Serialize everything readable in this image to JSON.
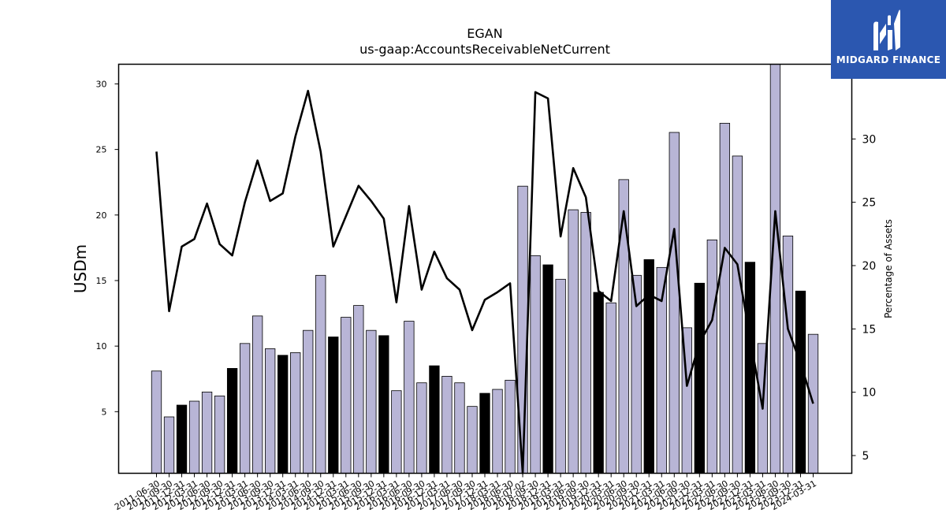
{
  "chart_data": {
    "type": "bar",
    "title": "EGAN",
    "subtitle": "us-gaap:AccountsReceivableNetCurrent",
    "ylabel": "USDm",
    "y2label": "Percentage of Assets",
    "ylim": [
      0.3,
      31.5
    ],
    "y2lim": [
      3.6,
      35.9
    ],
    "yticks": [
      5,
      10,
      15,
      20,
      25,
      30
    ],
    "y2ticks": [
      5,
      10,
      15,
      20,
      25,
      30
    ],
    "colors": {
      "bar_normal": "#b8b5d6",
      "bar_highlight": "#000000",
      "line": "#000000"
    },
    "categories": [
      "2011-06-30",
      "2011-09-30",
      "2011-12-31",
      "2012-03-31",
      "2012-06-30",
      "2012-09-30",
      "2012-12-31",
      "2013-03-31",
      "2013-06-30",
      "2013-09-30",
      "2013-12-31",
      "2014-03-31",
      "2014-06-30",
      "2014-09-30",
      "2014-12-31",
      "2015-03-31",
      "2015-06-30",
      "2015-09-30",
      "2015-12-31",
      "2016-03-31",
      "2016-06-30",
      "2016-09-30",
      "2016-12-31",
      "2017-03-31",
      "2017-06-30",
      "2017-09-30",
      "2017-12-31",
      "2018-03-31",
      "2018-06-30",
      "2018-07-02",
      "2018-09-30",
      "2018-12-31",
      "2019-03-31",
      "2019-06-30",
      "2019-09-30",
      "2019-12-31",
      "2020-03-31",
      "2020-06-30",
      "2020-09-30",
      "2020-12-31",
      "2021-03-31",
      "2021-06-30",
      "2021-09-30",
      "2021-12-31",
      "2022-03-31",
      "2022-06-30",
      "2022-09-30",
      "2022-12-31",
      "2023-03-31",
      "2023-06-30",
      "2023-09-30",
      "2023-12-31",
      "2024-03-31"
    ],
    "series": [
      {
        "type": "bar",
        "values": [
          8.1,
          4.6,
          5.5,
          5.8,
          6.5,
          6.2,
          8.3,
          10.2,
          12.3,
          9.8,
          9.3,
          9.5,
          11.2,
          15.4,
          10.7,
          12.2,
          13.1,
          11.2,
          10.8,
          6.6,
          11.9,
          7.2,
          8.5,
          7.7,
          7.2,
          5.4,
          6.4,
          6.7,
          7.4,
          22.2,
          16.9,
          16.2,
          15.1,
          20.4,
          20.2,
          14.1,
          13.3,
          22.7,
          15.4,
          16.6,
          16.0,
          26.3,
          11.4,
          14.8,
          18.1,
          27.0,
          24.5,
          16.4,
          10.2,
          31.6,
          18.4,
          14.2,
          10.9
        ],
        "highlight": [
          false,
          false,
          true,
          false,
          false,
          false,
          true,
          false,
          false,
          false,
          true,
          false,
          false,
          false,
          true,
          false,
          false,
          false,
          true,
          false,
          false,
          false,
          true,
          false,
          false,
          false,
          true,
          false,
          false,
          false,
          false,
          true,
          false,
          false,
          false,
          true,
          false,
          false,
          false,
          true,
          false,
          false,
          false,
          true,
          false,
          false,
          false,
          true,
          false,
          false,
          false,
          true,
          false
        ]
      },
      {
        "type": "line",
        "axis": "right",
        "values": [
          29.0,
          16.4,
          21.5,
          22.1,
          24.9,
          21.7,
          20.8,
          25.0,
          28.3,
          25.1,
          25.7,
          30.2,
          33.8,
          29.0,
          21.5,
          23.9,
          26.3,
          25.1,
          23.7,
          17.1,
          24.7,
          18.1,
          21.1,
          19.0,
          18.1,
          14.9,
          17.3,
          17.9,
          18.6,
          3.6,
          33.7,
          33.2,
          22.3,
          27.7,
          25.4,
          18.0,
          17.2,
          24.3,
          16.8,
          17.7,
          17.2,
          22.9,
          10.5,
          13.9,
          15.7,
          21.4,
          20.1,
          14.3,
          8.7,
          24.3,
          15.0,
          12.3,
          9.1
        ]
      }
    ]
  },
  "logo": {
    "text": "MIDGARD FINANCE"
  }
}
